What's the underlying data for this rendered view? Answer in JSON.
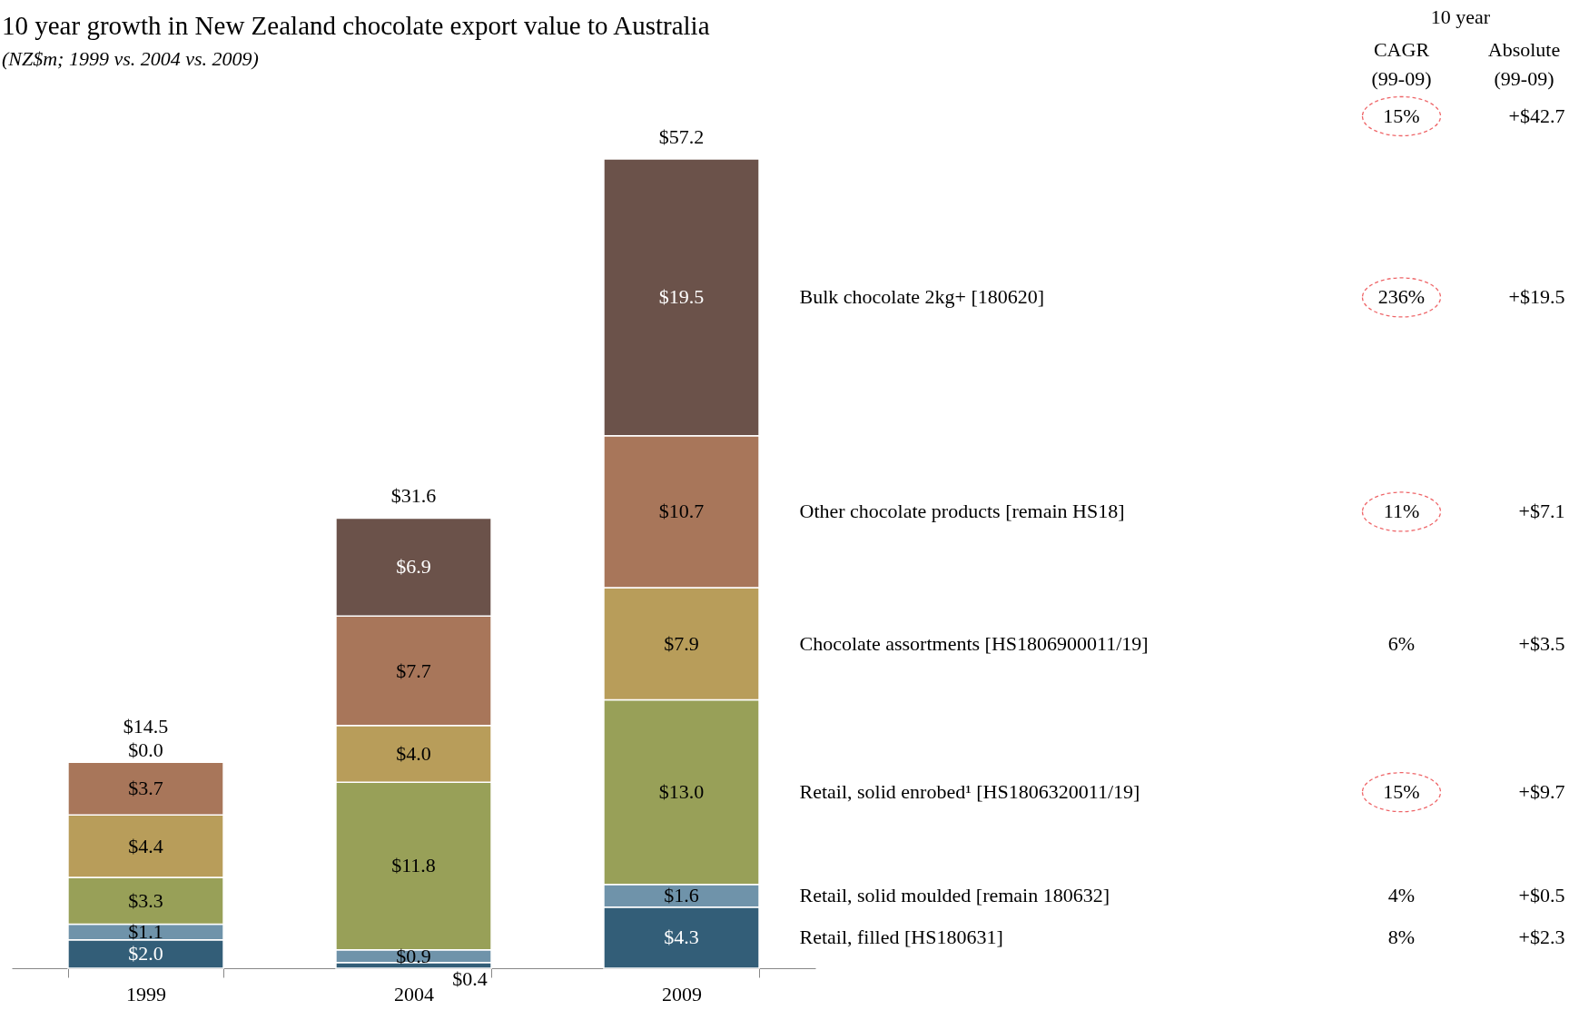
{
  "chart_data": {
    "type": "bar",
    "title": "10 year growth in New Zealand chocolate export value to Australia",
    "subtitle": "(NZ$m; 1999 vs. 2004 vs. 2009)",
    "categories": [
      "1999",
      "2004",
      "2009"
    ],
    "stacked": true,
    "series": [
      {
        "name": "Retail, filled [HS180631]",
        "color": "#335e78",
        "values": [
          2.0,
          0.4,
          4.3
        ],
        "value_labels": [
          "$2.0",
          "$0.4",
          "$4.3"
        ]
      },
      {
        "name": "Retail, solid moulded [remain 180632]",
        "color": "#6f93aa",
        "values": [
          1.1,
          0.9,
          1.6
        ],
        "value_labels": [
          "$1.1",
          "$0.9",
          "$1.6"
        ]
      },
      {
        "name": "Retail, solid enrobed¹ [HS1806320011/19]",
        "color": "#98a058",
        "values": [
          3.3,
          11.8,
          13.0
        ],
        "value_labels": [
          "$3.3",
          "$11.8",
          "$13.0"
        ]
      },
      {
        "name": "Chocolate assortments [HS1806900011/19]",
        "color": "#b89d5a",
        "values": [
          4.4,
          4.0,
          7.9
        ],
        "value_labels": [
          "$4.4",
          "$4.0",
          "$7.9"
        ]
      },
      {
        "name": "Other chocolate products [remain HS18]",
        "color": "#a8765a",
        "values": [
          3.7,
          7.7,
          10.7
        ],
        "value_labels": [
          "$3.7",
          "$7.7",
          "$10.7"
        ]
      },
      {
        "name": "Bulk chocolate 2kg+ [180620]",
        "color": "#6b524a",
        "values": [
          0.0,
          6.9,
          19.5
        ],
        "value_labels": [
          "$0.0",
          "$6.9",
          "$19.5"
        ]
      }
    ],
    "totals": [
      "$14.5",
      "$31.6",
      "$57.2"
    ],
    "annotations": [
      "10 year",
      "CAGR\n(99-09)",
      "Absolute\n(99-09)",
      "15%",
      "+$42.7",
      "8%",
      "+$2.3",
      "4%",
      "+$0.5",
      "15%",
      "+$9.7",
      "6%",
      "+$3.5",
      "11%",
      "+$7.1",
      "236%",
      "+$19.5"
    ]
  }
}
